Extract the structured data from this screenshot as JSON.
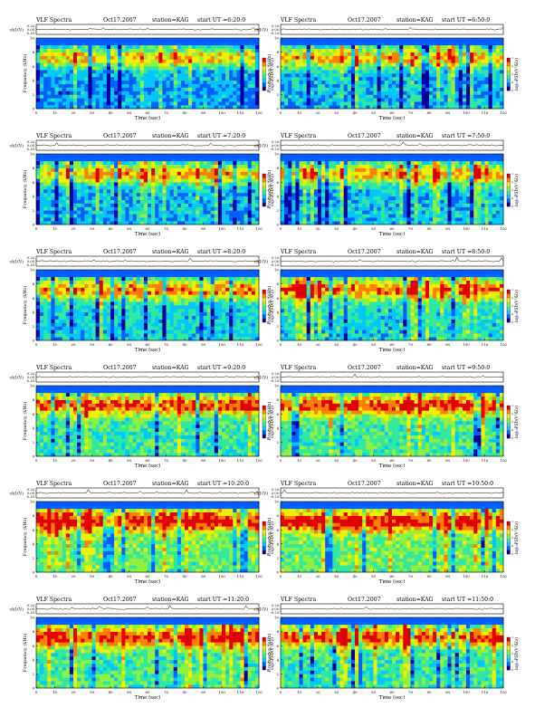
{
  "page": {
    "panel_title_prefix": "VLF Spectra",
    "date": "Oct17.2007",
    "station": "station=KAG",
    "ut_prefix": "start  UT =",
    "ch1_axis_label": "ch1(V)",
    "ch1_ticks": [
      "0.20",
      "0.00",
      "-0.20"
    ],
    "freq_axis_label": "Frequency (kHz)",
    "freq_ticks": [
      "0",
      "2",
      "4",
      "6",
      "8",
      "10"
    ],
    "time_axis_label": "Time (sec)",
    "time_ticks": [
      "0",
      "10",
      "20",
      "30",
      "40",
      "50",
      "60",
      "70",
      "80",
      "90",
      "100",
      "110",
      "120"
    ],
    "colorbar_label": "log₁₀PSD(V²/Hz)",
    "colorbar_ticks": [
      "-1",
      "-2",
      "-3",
      "-4",
      "-5"
    ]
  },
  "colors": {
    "spectrogram_scale": [
      "#0000a0",
      "#0060ff",
      "#00c8ff",
      "#30e8a0",
      "#90f040",
      "#f0f000",
      "#ff8000",
      "#e00000"
    ],
    "trace": "#000000"
  },
  "chart_data": [
    {
      "type": "heatmap",
      "title": "VLF Spectra",
      "start_ut": "6:20:0",
      "xlabel": "Time (sec)",
      "ylabel": "Frequency (kHz)",
      "xlim": [
        0,
        120
      ],
      "ylim": [
        0,
        10
      ],
      "intensity": 0.35
    },
    {
      "type": "heatmap",
      "title": "VLF Spectra",
      "start_ut": "6:50:0",
      "xlabel": "Time (sec)",
      "ylabel": "Frequency (kHz)",
      "xlim": [
        0,
        120
      ],
      "ylim": [
        0,
        10
      ],
      "intensity": 0.4
    },
    {
      "type": "heatmap",
      "title": "VLF Spectra",
      "start_ut": "7:20:0",
      "xlabel": "Time (sec)",
      "ylabel": "Frequency (kHz)",
      "xlim": [
        0,
        120
      ],
      "ylim": [
        0,
        10
      ],
      "intensity": 0.4
    },
    {
      "type": "heatmap",
      "title": "VLF Spectra",
      "start_ut": "7:50:0",
      "xlabel": "Time (sec)",
      "ylabel": "Frequency (kHz)",
      "xlim": [
        0,
        120
      ],
      "ylim": [
        0,
        10
      ],
      "intensity": 0.42
    },
    {
      "type": "heatmap",
      "title": "VLF Spectra",
      "start_ut": "8:20:0",
      "xlabel": "Time (sec)",
      "ylabel": "Frequency (kHz)",
      "xlim": [
        0,
        120
      ],
      "ylim": [
        0,
        10
      ],
      "intensity": 0.48
    },
    {
      "type": "heatmap",
      "title": "VLF Spectra",
      "start_ut": "8:50:0",
      "xlabel": "Time (sec)",
      "ylabel": "Frequency (kHz)",
      "xlim": [
        0,
        120
      ],
      "ylim": [
        0,
        10
      ],
      "intensity": 0.5
    },
    {
      "type": "heatmap",
      "title": "VLF Spectra",
      "start_ut": "9:20:0",
      "xlabel": "Time (sec)",
      "ylabel": "Frequency (kHz)",
      "xlim": [
        0,
        120
      ],
      "ylim": [
        0,
        10
      ],
      "intensity": 0.58
    },
    {
      "type": "heatmap",
      "title": "VLF Spectra",
      "start_ut": "9:50:0",
      "xlabel": "Time (sec)",
      "ylabel": "Frequency (kHz)",
      "xlim": [
        0,
        120
      ],
      "ylim": [
        0,
        10
      ],
      "intensity": 0.6
    },
    {
      "type": "heatmap",
      "title": "VLF Spectra",
      "start_ut": "10:20:0",
      "xlabel": "Time (sec)",
      "ylabel": "Frequency (kHz)",
      "xlim": [
        0,
        120
      ],
      "ylim": [
        0,
        10
      ],
      "intensity": 0.68
    },
    {
      "type": "heatmap",
      "title": "VLF Spectra",
      "start_ut": "10:50:0",
      "xlabel": "Time (sec)",
      "ylabel": "Frequency (kHz)",
      "xlim": [
        0,
        120
      ],
      "ylim": [
        0,
        10
      ],
      "intensity": 0.68
    },
    {
      "type": "heatmap",
      "title": "VLF Spectra",
      "start_ut": "11:20:0",
      "xlabel": "Time (sec)",
      "ylabel": "Frequency (kHz)",
      "xlim": [
        0,
        120
      ],
      "ylim": [
        0,
        10
      ],
      "intensity": 0.62
    },
    {
      "type": "heatmap",
      "title": "VLF Spectra",
      "start_ut": "11:50:0",
      "xlabel": "Time (sec)",
      "ylabel": "Frequency (kHz)",
      "xlim": [
        0,
        120
      ],
      "ylim": [
        0,
        10
      ],
      "intensity": 0.58
    }
  ]
}
